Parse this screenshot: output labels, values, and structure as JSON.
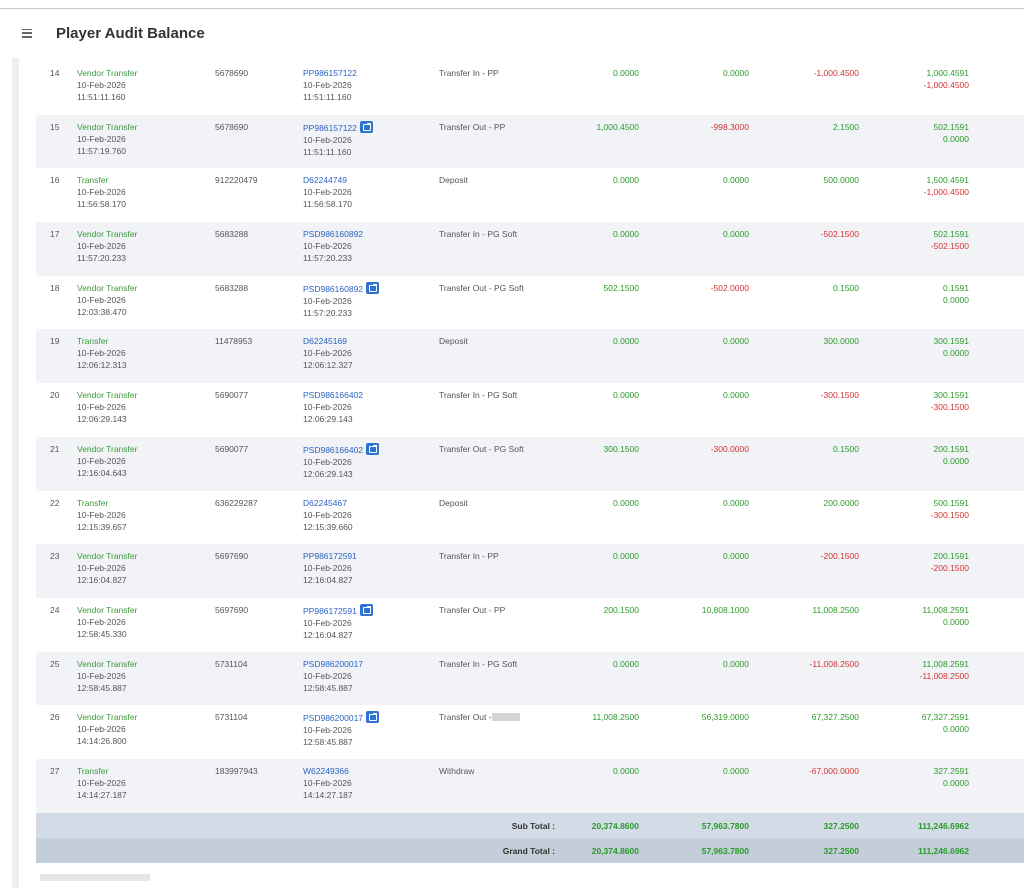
{
  "header": {
    "title": "Player Audit Balance"
  },
  "rows": [
    {
      "no": "14",
      "type": "Vendor Transfer",
      "date": "10-Feb-2026",
      "time": "11:51:11.160",
      "acct": "5678690",
      "ref": "PP986157122",
      "ref_date": "10-Feb-2026",
      "ref_time": "11:51:11.160",
      "desc": "Transfer In - PP",
      "c1": "0.0000",
      "c2": "0.0000",
      "c3": "-1,000.4500",
      "bal1": "1,000.4591",
      "bal2": "-1,000.4500"
    },
    {
      "no": "15",
      "type": "Vendor Transfer",
      "date": "10-Feb-2026",
      "time": "11:57:19.760",
      "acct": "5678690",
      "ref": "PP986157122",
      "ref_date": "10-Feb-2026",
      "ref_time": "11:51:11.160",
      "desc": "Transfer Out - PP",
      "c1": "1,000.4500",
      "c2": "-998.3000",
      "c3": "2.1500",
      "bal1": "502.1591",
      "bal2": "0.0000"
    },
    {
      "no": "16",
      "type": "Transfer",
      "date": "10-Feb-2026",
      "time": "11:56:58.170",
      "acct": "912220479",
      "ref": "D62244749",
      "ref_date": "10-Feb-2026",
      "ref_time": "11:56:58.170",
      "desc": "Deposit",
      "c1": "0.0000",
      "c2": "0.0000",
      "c3": "500.0000",
      "bal1": "1,500.4591",
      "bal2": "-1,000.4500"
    },
    {
      "no": "17",
      "type": "Vendor Transfer",
      "date": "10-Feb-2026",
      "time": "11:57:20.233",
      "acct": "5683288",
      "ref": "PSD986160892",
      "ref_date": "10-Feb-2026",
      "ref_time": "11:57:20.233",
      "desc": "Transfer In - PG Soft",
      "c1": "0.0000",
      "c2": "0.0000",
      "c3": "-502.1500",
      "bal1": "502.1591",
      "bal2": "-502.1500"
    },
    {
      "no": "18",
      "type": "Vendor Transfer",
      "date": "10-Feb-2026",
      "time": "12:03:38.470",
      "acct": "5683288",
      "ref": "PSD986160892",
      "ref_date": "10-Feb-2026",
      "ref_time": "11:57:20.233",
      "desc": "Transfer Out - PG Soft",
      "c1": "502.1500",
      "c2": "-502.0000",
      "c3": "0.1500",
      "bal1": "0.1591",
      "bal2": "0.0000"
    },
    {
      "no": "19",
      "type": "Transfer",
      "date": "10-Feb-2026",
      "time": "12:06:12.313",
      "acct": "11478953",
      "ref": "D62245169",
      "ref_date": "10-Feb-2026",
      "ref_time": "12:06:12.327",
      "desc": "Deposit",
      "c1": "0.0000",
      "c2": "0.0000",
      "c3": "300.0000",
      "bal1": "300.1591",
      "bal2": "0.0000"
    },
    {
      "no": "20",
      "type": "Vendor Transfer",
      "date": "10-Feb-2026",
      "time": "12:06:29.143",
      "acct": "5690077",
      "ref": "PSD986166402",
      "ref_date": "10-Feb-2026",
      "ref_time": "12:06:29.143",
      "desc": "Transfer In - PG Soft",
      "c1": "0.0000",
      "c2": "0.0000",
      "c3": "-300.1500",
      "bal1": "300.1591",
      "bal2": "-300.1500"
    },
    {
      "no": "21",
      "type": "Vendor Transfer",
      "date": "10-Feb-2026",
      "time": "12:16:04.643",
      "acct": "5690077",
      "ref": "PSD986166402",
      "ref_date": "10-Feb-2026",
      "ref_time": "12:06:29.143",
      "desc": "Transfer Out - PG Soft",
      "c1": "300.1500",
      "c2": "-300.0000",
      "c3": "0.1500",
      "bal1": "200.1591",
      "bal2": "0.0000"
    },
    {
      "no": "22",
      "type": "Transfer",
      "date": "10-Feb-2026",
      "time": "12:15:39.657",
      "acct": "636229287",
      "ref": "D62245467",
      "ref_date": "10-Feb-2026",
      "ref_time": "12:15:39.660",
      "desc": "Deposit",
      "c1": "0.0000",
      "c2": "0.0000",
      "c3": "200.0000",
      "bal1": "500.1591",
      "bal2": "-300.1500"
    },
    {
      "no": "23",
      "type": "Vendor Transfer",
      "date": "10-Feb-2026",
      "time": "12:16:04.827",
      "acct": "5697690",
      "ref": "PP986172591",
      "ref_date": "10-Feb-2026",
      "ref_time": "12:16:04.827",
      "desc": "Transfer In - PP",
      "c1": "0.0000",
      "c2": "0.0000",
      "c3": "-200.1500",
      "bal1": "200.1591",
      "bal2": "-200.1500"
    },
    {
      "no": "24",
      "type": "Vendor Transfer",
      "date": "10-Feb-2026",
      "time": "12:58:45.330",
      "acct": "5697690",
      "ref": "PP986172591",
      "ref_date": "10-Feb-2026",
      "ref_time": "12:16:04.827",
      "desc": "Transfer Out - PP",
      "c1": "200.1500",
      "c2": "10,808.1000",
      "c3": "11,008.2500",
      "bal1": "11,008.2591",
      "bal2": "0.0000"
    },
    {
      "no": "25",
      "type": "Vendor Transfer",
      "date": "10-Feb-2026",
      "time": "12:58:45.887",
      "acct": "5731104",
      "ref": "PSD986200017",
      "ref_date": "10-Feb-2026",
      "ref_time": "12:58:45.887",
      "desc": "Transfer In - PG Soft",
      "c1": "0.0000",
      "c2": "0.0000",
      "c3": "-11,008.2500",
      "bal1": "11,008.2591",
      "bal2": "-11,008.2500"
    },
    {
      "no": "26",
      "type": "Vendor Transfer",
      "date": "10-Feb-2026",
      "time": "14:14:26.800",
      "acct": "5731104",
      "ref": "PSD986200017",
      "ref_date": "10-Feb-2026",
      "ref_time": "12:58:45.887",
      "desc": "Transfer Out -",
      "c1": "11,008.2500",
      "c2": "56,319.0000",
      "c3": "67,327.2500",
      "bal1": "67,327.2591",
      "bal2": "0.0000"
    },
    {
      "no": "27",
      "type": "Transfer",
      "date": "10-Feb-2026",
      "time": "14:14:27.187",
      "acct": "183997943",
      "ref": "W62249366",
      "ref_date": "10-Feb-2026",
      "ref_time": "14:14:27.187",
      "desc": "Withdraw",
      "c1": "0.0000",
      "c2": "0.0000",
      "c3": "-67,000.0000",
      "bal1": "327.2591",
      "bal2": "0.0000"
    }
  ],
  "totals": {
    "sub": {
      "label": "Sub Total :",
      "c1": "20,374.8600",
      "c2": "57,963.7800",
      "c3": "327.2500",
      "bal": "111,246.6962"
    },
    "grand": {
      "label": "Grand Total :",
      "c1": "20,374.8600",
      "c2": "57,963.7800",
      "c3": "327.2500",
      "bal": "111,246.6962"
    }
  },
  "colors": {
    "positive": "#2a9a2a",
    "negative": "#d63232",
    "link": "#2b63c4",
    "type": "#3c9a3c"
  },
  "icons": {
    "menu": "hamburger-menu-icon",
    "external": "external-link-icon"
  }
}
